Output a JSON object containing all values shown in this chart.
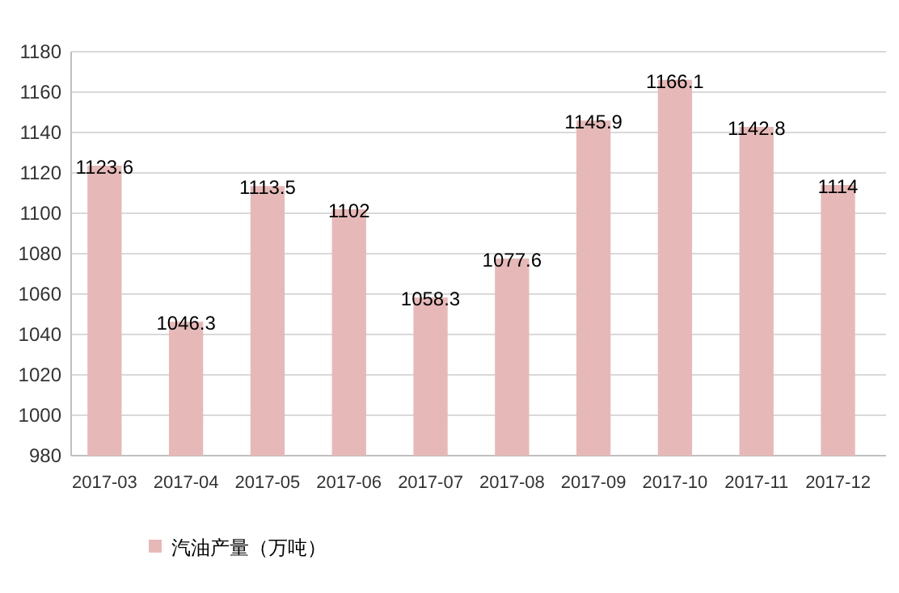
{
  "chart_data": {
    "type": "bar",
    "categories": [
      "2017-03",
      "2017-04",
      "2017-05",
      "2017-06",
      "2017-07",
      "2017-08",
      "2017-09",
      "2017-10",
      "2017-11",
      "2017-12"
    ],
    "series": [
      {
        "name": "汽油产量（万吨）",
        "color": "#e6b9b8",
        "values": [
          1123.6,
          1046.3,
          1113.5,
          1102,
          1058.3,
          1077.6,
          1145.9,
          1166.1,
          1142.8,
          1114
        ]
      }
    ],
    "ylim": [
      980,
      1180
    ],
    "yticks": [
      980,
      1000,
      1020,
      1040,
      1060,
      1080,
      1100,
      1120,
      1140,
      1160,
      1180
    ],
    "grid": "y",
    "data_labels": true,
    "legend": "bottom"
  }
}
